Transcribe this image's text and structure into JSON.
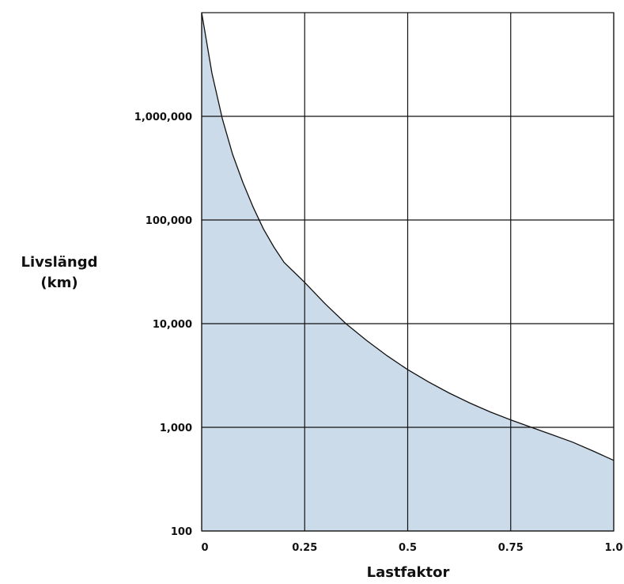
{
  "chart_data": {
    "type": "area",
    "title": "",
    "xlabel": "Lastfaktor",
    "ylabel": [
      "Livslängd",
      "(km)"
    ],
    "xlim": [
      0,
      1.0
    ],
    "ylim": [
      100,
      10000000
    ],
    "yscale": "log",
    "grid": true,
    "legend": "none",
    "x_ticks": [
      0,
      0.25,
      0.5,
      0.75,
      1.0
    ],
    "x_tick_labels": [
      "0",
      "0.25",
      "0.5",
      "0.75",
      "1.0"
    ],
    "y_ticks": [
      100,
      1000,
      10000,
      100000,
      1000000
    ],
    "y_tick_labels": [
      "100",
      "1,000",
      "10,000",
      "100,000",
      "1,000,000"
    ],
    "series": [
      {
        "fill_color": "#ccdbea",
        "line_color": "#111111",
        "x": [
          0.0,
          0.025,
          0.05,
          0.075,
          0.1,
          0.125,
          0.15,
          0.175,
          0.2,
          0.25,
          0.3,
          0.35,
          0.4,
          0.45,
          0.5,
          0.55,
          0.6,
          0.65,
          0.7,
          0.75,
          0.8,
          0.85,
          0.9,
          0.95,
          1.0
        ],
        "y": [
          10000000,
          2600000,
          950000,
          430000,
          230000,
          133000,
          82000,
          55000,
          39000,
          25000,
          15500,
          10000,
          6900,
          4900,
          3600,
          2750,
          2150,
          1720,
          1410,
          1180,
          1000,
          850,
          720,
          590,
          480
        ]
      }
    ]
  }
}
